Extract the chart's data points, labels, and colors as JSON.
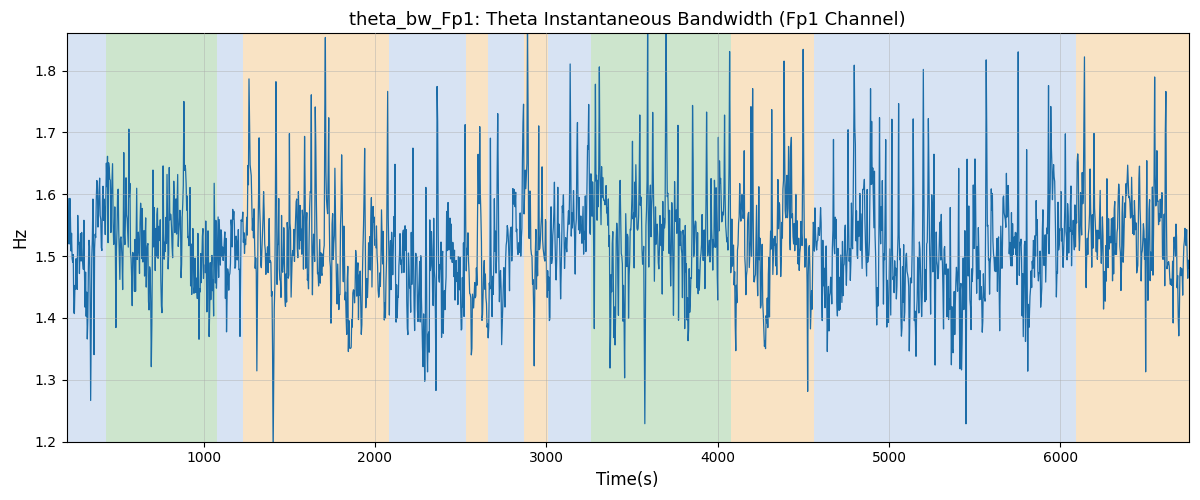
{
  "title": "theta_bw_Fp1: Theta Instantaneous Bandwidth (Fp1 Channel)",
  "xlabel": "Time(s)",
  "ylabel": "Hz",
  "xlim": [
    200,
    6750
  ],
  "ylim": [
    1.2,
    1.86
  ],
  "yticks": [
    1.2,
    1.3,
    1.4,
    1.5,
    1.6,
    1.7,
    1.8
  ],
  "xticks": [
    1000,
    2000,
    3000,
    4000,
    5000,
    6000
  ],
  "background_color": "#ffffff",
  "line_color": "#1b6ca8",
  "line_width": 0.9,
  "grid_color": "#aaaaaa",
  "grid_alpha": 0.5,
  "bands": [
    {
      "start": 200,
      "end": 430,
      "color": "#b0c8e8",
      "alpha": 0.5
    },
    {
      "start": 430,
      "end": 1080,
      "color": "#9dcc9d",
      "alpha": 0.5
    },
    {
      "start": 1080,
      "end": 1230,
      "color": "#b0c8e8",
      "alpha": 0.5
    },
    {
      "start": 1230,
      "end": 2080,
      "color": "#f5c88a",
      "alpha": 0.5
    },
    {
      "start": 2080,
      "end": 2530,
      "color": "#b0c8e8",
      "alpha": 0.5
    },
    {
      "start": 2530,
      "end": 2660,
      "color": "#f5c88a",
      "alpha": 0.5
    },
    {
      "start": 2660,
      "end": 2870,
      "color": "#b0c8e8",
      "alpha": 0.5
    },
    {
      "start": 2870,
      "end": 3010,
      "color": "#f5c88a",
      "alpha": 0.5
    },
    {
      "start": 3010,
      "end": 3260,
      "color": "#b0c8e8",
      "alpha": 0.5
    },
    {
      "start": 3260,
      "end": 3380,
      "color": "#9dcc9d",
      "alpha": 0.5
    },
    {
      "start": 3380,
      "end": 4080,
      "color": "#9dcc9d",
      "alpha": 0.5
    },
    {
      "start": 4080,
      "end": 4560,
      "color": "#f5c88a",
      "alpha": 0.5
    },
    {
      "start": 4560,
      "end": 6090,
      "color": "#b0c8e8",
      "alpha": 0.5
    },
    {
      "start": 6090,
      "end": 6750,
      "color": "#f5c88a",
      "alpha": 0.5
    }
  ],
  "seed": 42,
  "n_points": 2000,
  "t_start": 200,
  "t_end": 6750,
  "signal_mean": 1.502
}
